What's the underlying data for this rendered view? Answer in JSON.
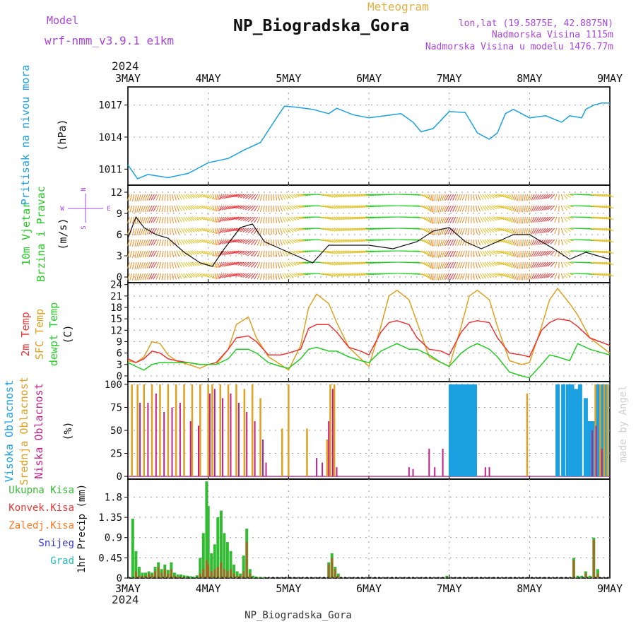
{
  "header": {
    "model_label": "Model",
    "model_name": "wrf-nmm_v3.9.1 e1km",
    "type_label": "Meteogram",
    "station": "NP_Biogradska_Gora",
    "lonlat": "lon,lat (19.5875E, 42.8875N)",
    "altitude": "Nadmorska Visina 1115m",
    "model_altitude": "Nadmorska Visina u modelu 1476.77m",
    "credit": "made by Angel"
  },
  "footer": {
    "station": "NP_Biogradska_Gora"
  },
  "time_axis": {
    "year": "2024",
    "labels": [
      "3MAY",
      "4MAY",
      "5MAY",
      "6MAY",
      "7MAY",
      "8MAY",
      "9MAY"
    ]
  },
  "colors": {
    "pressure": "#1ba1e2",
    "temp2m": "#ee3333",
    "sfc_temp": "#e0a020",
    "dewpt": "#22cc22",
    "high_cloud": "#1ba1e2",
    "mid_cloud": "#e0a020",
    "low_cloud": "#c0208a",
    "total_rain": "#33bb33",
    "conv_rain": "#ee3333",
    "freezing_rain": "#ff7722",
    "snow": "#3333dd",
    "hail": "#22bbbb",
    "wind_label": "#22cc22",
    "compass": "#aa44dd",
    "header_purple": "#aa44dd"
  },
  "chart_data": [
    {
      "type": "line",
      "panel": "pressure",
      "ylabel": [
        "Pritisak na nivou mora",
        "(hPa)"
      ],
      "ylim": [
        1009.5,
        1018.7
      ],
      "yticks": [
        1011,
        1014,
        1017
      ],
      "x_days": [
        0,
        0.12,
        0.25,
        0.5,
        0.75,
        1.0,
        1.25,
        1.45,
        1.65,
        1.85,
        1.95,
        2.1,
        2.3,
        2.5,
        2.6,
        2.8,
        3.0,
        3.2,
        3.4,
        3.55,
        3.65,
        3.8,
        4.0,
        4.2,
        4.35,
        4.5,
        4.6,
        4.7,
        4.8,
        5.0,
        5.2,
        5.4,
        5.5,
        5.65,
        5.7,
        5.8,
        5.9,
        6.0
      ],
      "series": [
        {
          "name": "",
          "values": [
            1011.4,
            1010.1,
            1010.5,
            1010.2,
            1010.6,
            1011.6,
            1012.0,
            1012.8,
            1013.5,
            1015.8,
            1016.9,
            1016.8,
            1016.6,
            1016.2,
            1016.7,
            1016.1,
            1015.8,
            1016.0,
            1016.2,
            1015.4,
            1014.5,
            1014.8,
            1016.4,
            1016.3,
            1014.4,
            1013.8,
            1014.4,
            1016.2,
            1016.6,
            1015.8,
            1016.0,
            1015.4,
            1016.0,
            1015.8,
            1016.6,
            1017.0,
            1017.2,
            1017.2
          ]
        }
      ]
    },
    {
      "type": "line",
      "panel": "wind",
      "ylabel": [
        "10m Vjetar",
        "Brzina i Pravac",
        "(m/s)"
      ],
      "compass": [
        "N",
        "E",
        "S",
        "W"
      ],
      "ylim": [
        -0.8,
        13
      ],
      "yticks": [
        0,
        3,
        6,
        9,
        12
      ],
      "x_days": [
        0,
        0.1,
        0.2,
        0.35,
        0.5,
        0.7,
        0.9,
        1.05,
        1.2,
        1.4,
        1.55,
        1.7,
        1.9,
        2.1,
        2.3,
        2.5,
        2.8,
        3.0,
        3.3,
        3.6,
        3.8,
        4.0,
        4.2,
        4.4,
        4.6,
        4.8,
        5.0,
        5.3,
        5.5,
        5.7,
        6.0
      ],
      "series": [
        {
          "name": "",
          "values": [
            5.5,
            8.5,
            7.0,
            6.0,
            5.5,
            3.5,
            2.0,
            1.5,
            4.0,
            7.0,
            7.5,
            5.0,
            4.0,
            3.0,
            2.0,
            4.5,
            4.5,
            4.5,
            4.0,
            5.0,
            6.5,
            7.0,
            5.0,
            4.0,
            5.0,
            6.0,
            6.0,
            4.0,
            2.5,
            3.5,
            2.5
          ]
        }
      ],
      "wind_dir_deg": [
        200,
        190,
        200,
        210,
        180,
        140,
        120,
        160,
        220,
        250,
        230,
        190,
        160,
        110,
        90,
        120,
        110,
        100,
        90,
        100,
        180,
        210,
        200,
        150,
        110,
        160,
        200,
        230,
        90,
        100,
        120
      ]
    },
    {
      "type": "line",
      "panel": "temperature",
      "ylabel": [
        "2m Temp",
        "SFC Temp",
        "dewpt Temp",
        "(C)"
      ],
      "ylim": [
        -1.5,
        24.5
      ],
      "yticks": [
        0,
        3,
        6,
        9,
        12,
        15,
        18,
        21,
        24
      ],
      "x_days": [
        0,
        0.1,
        0.2,
        0.3,
        0.4,
        0.5,
        0.6,
        0.75,
        0.9,
        1.0,
        1.1,
        1.25,
        1.35,
        1.5,
        1.6,
        1.75,
        1.9,
        2.0,
        2.15,
        2.25,
        2.35,
        2.5,
        2.6,
        2.75,
        2.9,
        3.0,
        3.15,
        3.25,
        3.35,
        3.5,
        3.6,
        3.75,
        3.9,
        4.0,
        4.15,
        4.25,
        4.35,
        4.5,
        4.6,
        4.75,
        4.9,
        5.0,
        5.15,
        5.25,
        5.35,
        5.5,
        5.6,
        5.75,
        6.0
      ],
      "series": [
        {
          "name": "2m Temp",
          "values": [
            4.5,
            3.5,
            4.5,
            6.5,
            6.0,
            4.5,
            4.0,
            3.5,
            3.0,
            3.0,
            3.5,
            7.0,
            10.0,
            10.5,
            9.0,
            5.5,
            5.5,
            6.0,
            7.0,
            12.5,
            13.5,
            13.5,
            11.5,
            7.5,
            6.5,
            5.5,
            11.5,
            14.0,
            14.5,
            13.5,
            10.0,
            7.0,
            6.5,
            5.5,
            11.5,
            14.0,
            14.5,
            14.0,
            10.0,
            6.0,
            5.5,
            5.0,
            12.0,
            14.0,
            15.0,
            14.5,
            13.0,
            10.0,
            8.0
          ]
        },
        {
          "name": "SFC Temp",
          "values": [
            4.0,
            3.5,
            5.0,
            9.0,
            8.5,
            5.5,
            4.0,
            3.0,
            2.0,
            3.0,
            3.0,
            7.0,
            13.5,
            15.5,
            10.0,
            5.0,
            3.0,
            1.5,
            8.0,
            18.0,
            21.5,
            19.0,
            14.0,
            7.5,
            4.5,
            2.5,
            13.0,
            21.0,
            22.5,
            20.0,
            14.0,
            5.0,
            3.5,
            2.5,
            13.0,
            21.0,
            22.5,
            20.0,
            13.0,
            4.0,
            3.0,
            3.5,
            13.0,
            20.0,
            23.0,
            19.0,
            16.0,
            10.0,
            6.0
          ]
        },
        {
          "name": "dewpt Temp",
          "values": [
            3.5,
            2.5,
            1.5,
            3.0,
            3.5,
            3.5,
            3.5,
            3.5,
            3.0,
            3.0,
            3.0,
            4.5,
            7.0,
            7.0,
            6.0,
            3.5,
            2.5,
            2.0,
            4.5,
            7.0,
            7.5,
            6.5,
            6.5,
            5.0,
            4.0,
            3.5,
            6.5,
            7.5,
            8.5,
            7.0,
            7.0,
            5.5,
            3.5,
            2.5,
            6.0,
            7.5,
            8.5,
            7.0,
            5.0,
            1.0,
            0.0,
            -0.5,
            3.0,
            5.5,
            5.0,
            4.0,
            8.5,
            7.0,
            5.5
          ]
        }
      ]
    },
    {
      "type": "bar",
      "panel": "clouds",
      "ylabel": [
        "Visoka Oblacnost",
        "Srednja Oblacnost",
        "Niska Oblacnost",
        "(%)"
      ],
      "ylim": [
        -3,
        103
      ],
      "yticks": [
        0,
        25,
        50,
        75,
        100
      ],
      "series": [
        {
          "name": "Visoka Oblacnost",
          "x_days": [
            4.02,
            4.07,
            4.12,
            4.17,
            4.22,
            4.27,
            4.32,
            5.35,
            5.42,
            5.48,
            5.53,
            5.58,
            5.63,
            5.7,
            5.75,
            5.8,
            5.85,
            5.88,
            5.92,
            5.96
          ],
          "values": [
            100,
            100,
            100,
            100,
            100,
            100,
            100,
            100,
            100,
            100,
            100,
            95,
            100,
            85,
            60,
            60,
            100,
            100,
            100,
            100
          ]
        },
        {
          "name": "Srednja Oblacnost",
          "x_days": [
            0.05,
            0.12,
            0.2,
            0.3,
            0.4,
            0.5,
            0.6,
            0.7,
            0.8,
            0.9,
            1.0,
            1.05,
            1.15,
            1.25,
            1.35,
            1.45,
            1.55,
            1.65,
            1.92,
            2.0,
            2.23,
            2.48,
            2.52,
            2.57,
            4.97,
            5.82,
            5.88,
            5.93,
            5.97
          ],
          "values": [
            100,
            100,
            100,
            100,
            100,
            100,
            100,
            100,
            100,
            100,
            100,
            100,
            100,
            100,
            100,
            95,
            100,
            85,
            52,
            100,
            52,
            40,
            100,
            100,
            90,
            100,
            100,
            100,
            100
          ]
        },
        {
          "name": "Niska Oblacnost",
          "x_days": [
            0.15,
            0.25,
            0.35,
            0.45,
            0.55,
            0.65,
            0.78,
            0.88,
            1.02,
            1.08,
            1.18,
            1.28,
            1.38,
            1.48,
            1.58,
            1.68,
            1.72,
            2.35,
            2.42,
            2.5,
            2.55,
            2.6,
            3.5,
            3.55,
            3.75,
            3.82,
            3.92,
            4.45,
            4.5,
            5.78,
            5.83,
            5.9
          ],
          "values": [
            80,
            80,
            90,
            70,
            75,
            80,
            60,
            55,
            90,
            95,
            85,
            90,
            80,
            70,
            60,
            40,
            15,
            20,
            15,
            60,
            95,
            10,
            10,
            8,
            30,
            10,
            30,
            10,
            10,
            50,
            55,
            30
          ]
        }
      ]
    },
    {
      "type": "bar",
      "panel": "precip",
      "ylabel": [
        "1hr Precip (mm)"
      ],
      "legend": [
        "Ukupna Kisa",
        "Konvek.Kisa",
        "Zaledj.Kisa",
        "Snijeg",
        "Grad"
      ],
      "ylim": [
        0,
        2.2
      ],
      "yticks": [
        0,
        0.45,
        0.9,
        1.35,
        1.8
      ],
      "x_days": [
        0.06,
        0.1,
        0.14,
        0.18,
        0.22,
        0.26,
        0.3,
        0.34,
        0.38,
        0.42,
        0.46,
        0.5,
        0.54,
        0.58,
        0.62,
        0.66,
        0.7,
        0.74,
        0.78,
        0.82,
        0.86,
        0.9,
        0.94,
        0.98,
        1.0,
        1.04,
        1.08,
        1.12,
        1.16,
        1.2,
        1.24,
        1.28,
        1.32,
        1.36,
        1.4,
        1.44,
        1.48,
        1.52,
        1.56,
        1.6,
        1.64,
        1.68,
        2.5,
        2.54,
        2.58,
        2.62,
        3.97,
        5.55,
        5.6,
        5.65,
        5.7,
        5.75,
        5.8,
        5.85
      ],
      "series": [
        {
          "name": "Ukupna Kisa",
          "values": [
            1.32,
            0.6,
            0.25,
            0.12,
            0.12,
            0.15,
            0.12,
            0.25,
            0.35,
            0.2,
            0.3,
            0.18,
            0.35,
            0.12,
            0.08,
            0.08,
            0.06,
            0.05,
            0.04,
            0.03,
            0.06,
            0.45,
            1.0,
            2.15,
            1.6,
            0.55,
            0.75,
            1.35,
            1.5,
            1.0,
            0.8,
            0.6,
            0.3,
            0.15,
            0.1,
            0.5,
            1.1,
            0.2,
            0.05,
            0.03,
            0.02,
            0.02,
            0.35,
            0.55,
            0.25,
            0.1,
            0.05,
            0.45,
            0.05,
            0.05,
            0.15,
            0.05,
            0.9,
            0.2
          ]
        },
        {
          "name": "Konvek.Kisa",
          "values": [
            0,
            0.15,
            0.05,
            0.05,
            0.05,
            0.1,
            0.08,
            0.15,
            0.25,
            0.12,
            0.2,
            0.1,
            0.2,
            0.05,
            0.03,
            0.03,
            0.02,
            0.02,
            0,
            0,
            0.02,
            0.1,
            0.2,
            0.4,
            0.3,
            0.15,
            0.2,
            0.25,
            0.35,
            0.2,
            0.15,
            0.2,
            0.1,
            0.05,
            0.05,
            0.15,
            0.8,
            0.1,
            0,
            0,
            0,
            0,
            0.3,
            0.45,
            0.2,
            0.05,
            0,
            0.4,
            0,
            0,
            0.1,
            0,
            0.85,
            0.1
          ]
        }
      ]
    }
  ]
}
